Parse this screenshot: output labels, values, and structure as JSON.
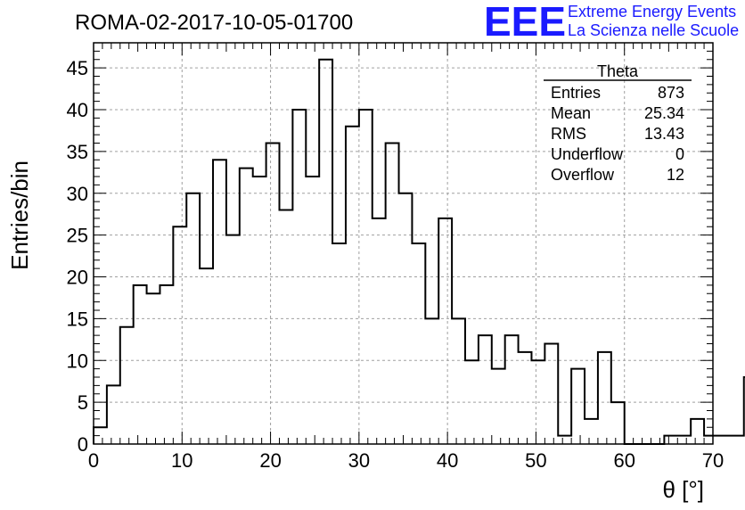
{
  "chart_data": {
    "type": "bar",
    "title": "ROMA-02-2017-10-05-01700",
    "xlabel": "θ [°]",
    "ylabel": "Entries/bin",
    "xlim": [
      0,
      70
    ],
    "ylim": [
      0,
      48
    ],
    "x_ticks": [
      0,
      10,
      20,
      30,
      40,
      50,
      60,
      70
    ],
    "y_ticks": [
      0,
      5,
      10,
      15,
      20,
      25,
      30,
      35,
      40,
      45
    ],
    "grid": true,
    "bin_width": 1.5,
    "bin_start": 0,
    "values": [
      2,
      7,
      14,
      19,
      18,
      19,
      26,
      30,
      21,
      34,
      25,
      33,
      32,
      36,
      28,
      40,
      32,
      46,
      24,
      38,
      40,
      27,
      36,
      30,
      24,
      15,
      27,
      15,
      10,
      13,
      9,
      13,
      11,
      10,
      12,
      1,
      9,
      3,
      11,
      5,
      0,
      0,
      0,
      1,
      1,
      3,
      1,
      1,
      1,
      8,
      1
    ]
  },
  "stats_box": {
    "name": "Theta",
    "rows": [
      {
        "label": "Entries",
        "value": "873"
      },
      {
        "label": "Mean",
        "value": "25.34"
      },
      {
        "label": "RMS",
        "value": "13.43"
      },
      {
        "label": "Underflow",
        "value": "0"
      },
      {
        "label": "Overflow",
        "value": "12"
      }
    ]
  },
  "logo": {
    "mark": "EEE",
    "line1": "Extreme Energy Events",
    "line2": "La Scienza nelle Scuole",
    "color": "#1a1aff"
  }
}
